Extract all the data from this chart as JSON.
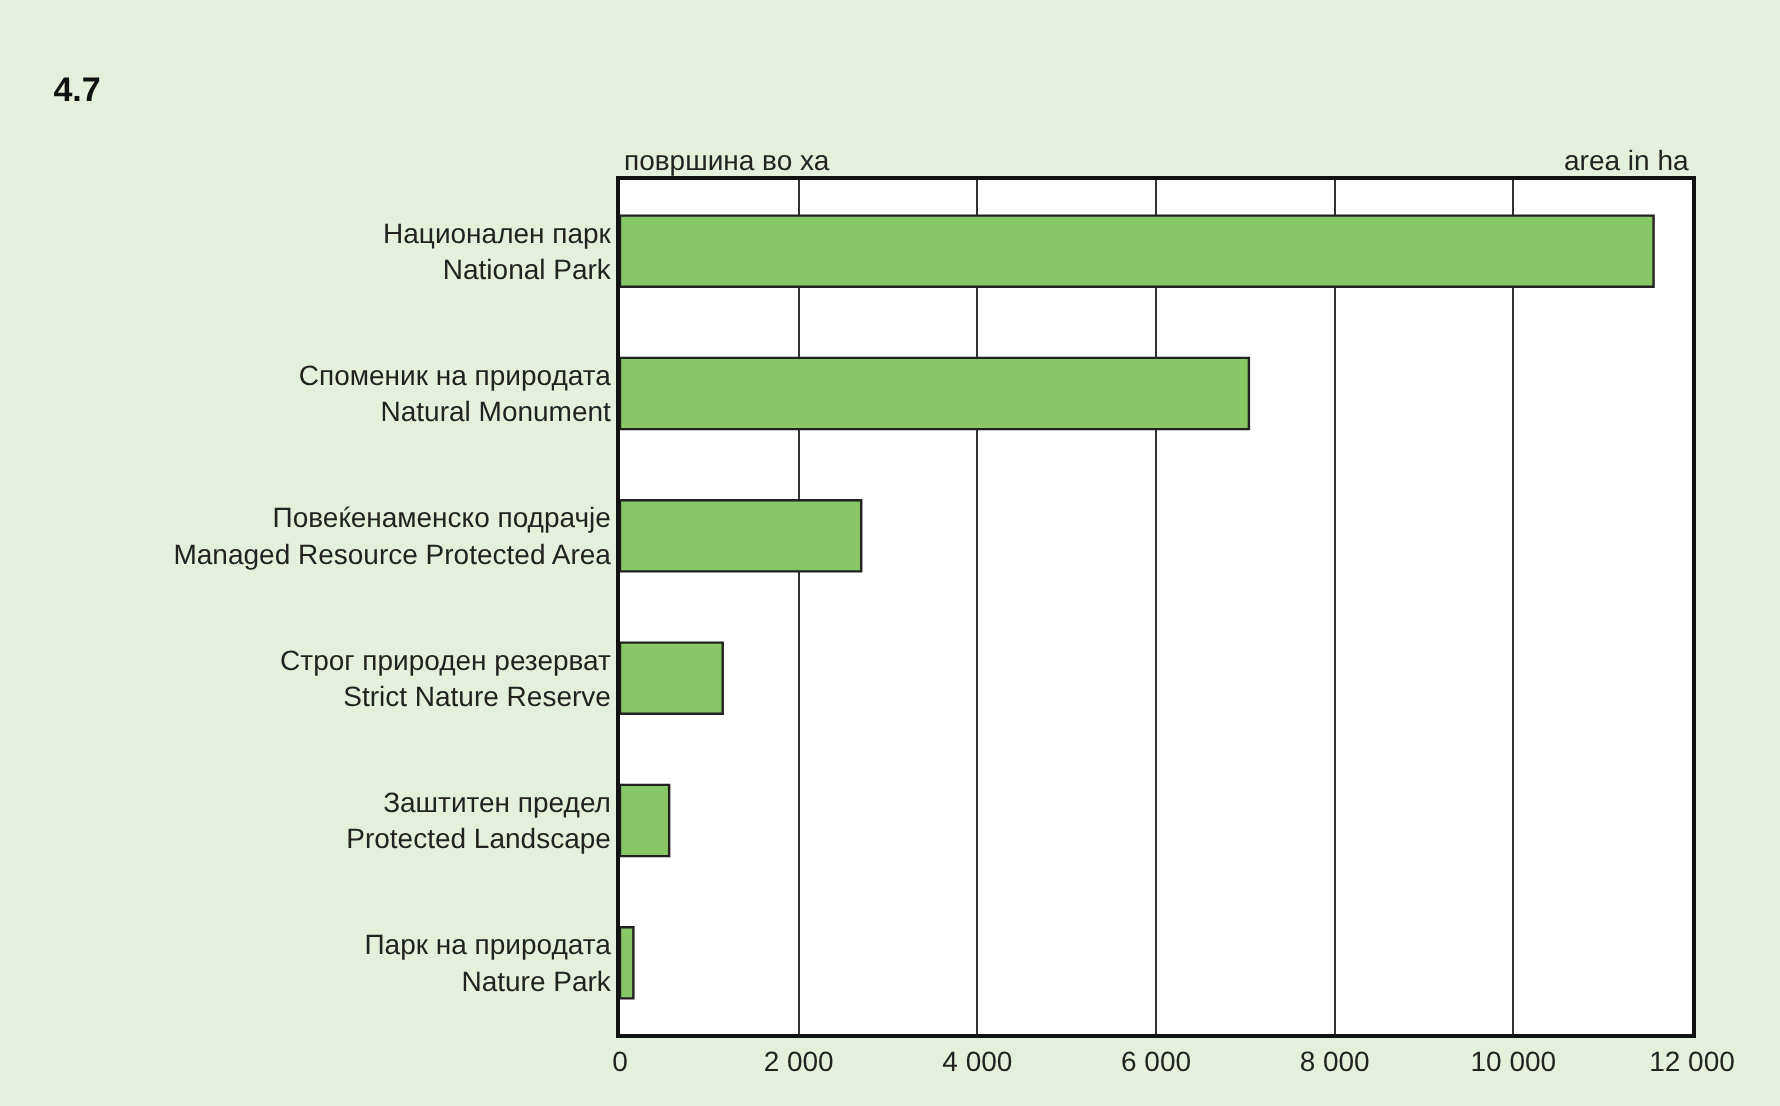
{
  "chart_data": {
    "type": "bar",
    "orientation": "horizontal",
    "title": "4.7",
    "categories": [
      "Национален парк\nNational Park",
      "Споменик на природата\nNatural Monument",
      "Повеќенаменско подрачје\nManaged Resource Protected Area",
      "Строг природен резерват\nStrict Nature Reserve",
      "Заштитен предел\nProtected Landscape",
      "Парк на природата\nNature Park"
    ],
    "values": [
      11570,
      7040,
      2700,
      1150,
      550,
      150
    ],
    "color": "#88c766",
    "xlim": [
      0,
      12000
    ],
    "xticks": [
      {
        "value": 0,
        "label": "0"
      },
      {
        "value": 2000,
        "label": "2 000"
      },
      {
        "value": 4000,
        "label": "4 000"
      },
      {
        "value": 6000,
        "label": "6 000"
      },
      {
        "value": 8000,
        "label": "8 000"
      },
      {
        "value": 10000,
        "label": "10 000"
      },
      {
        "value": 12000,
        "label": "12 000"
      }
    ],
    "grid": "x",
    "annotations": [
      "површина во ха",
      "area in ha"
    ]
  }
}
